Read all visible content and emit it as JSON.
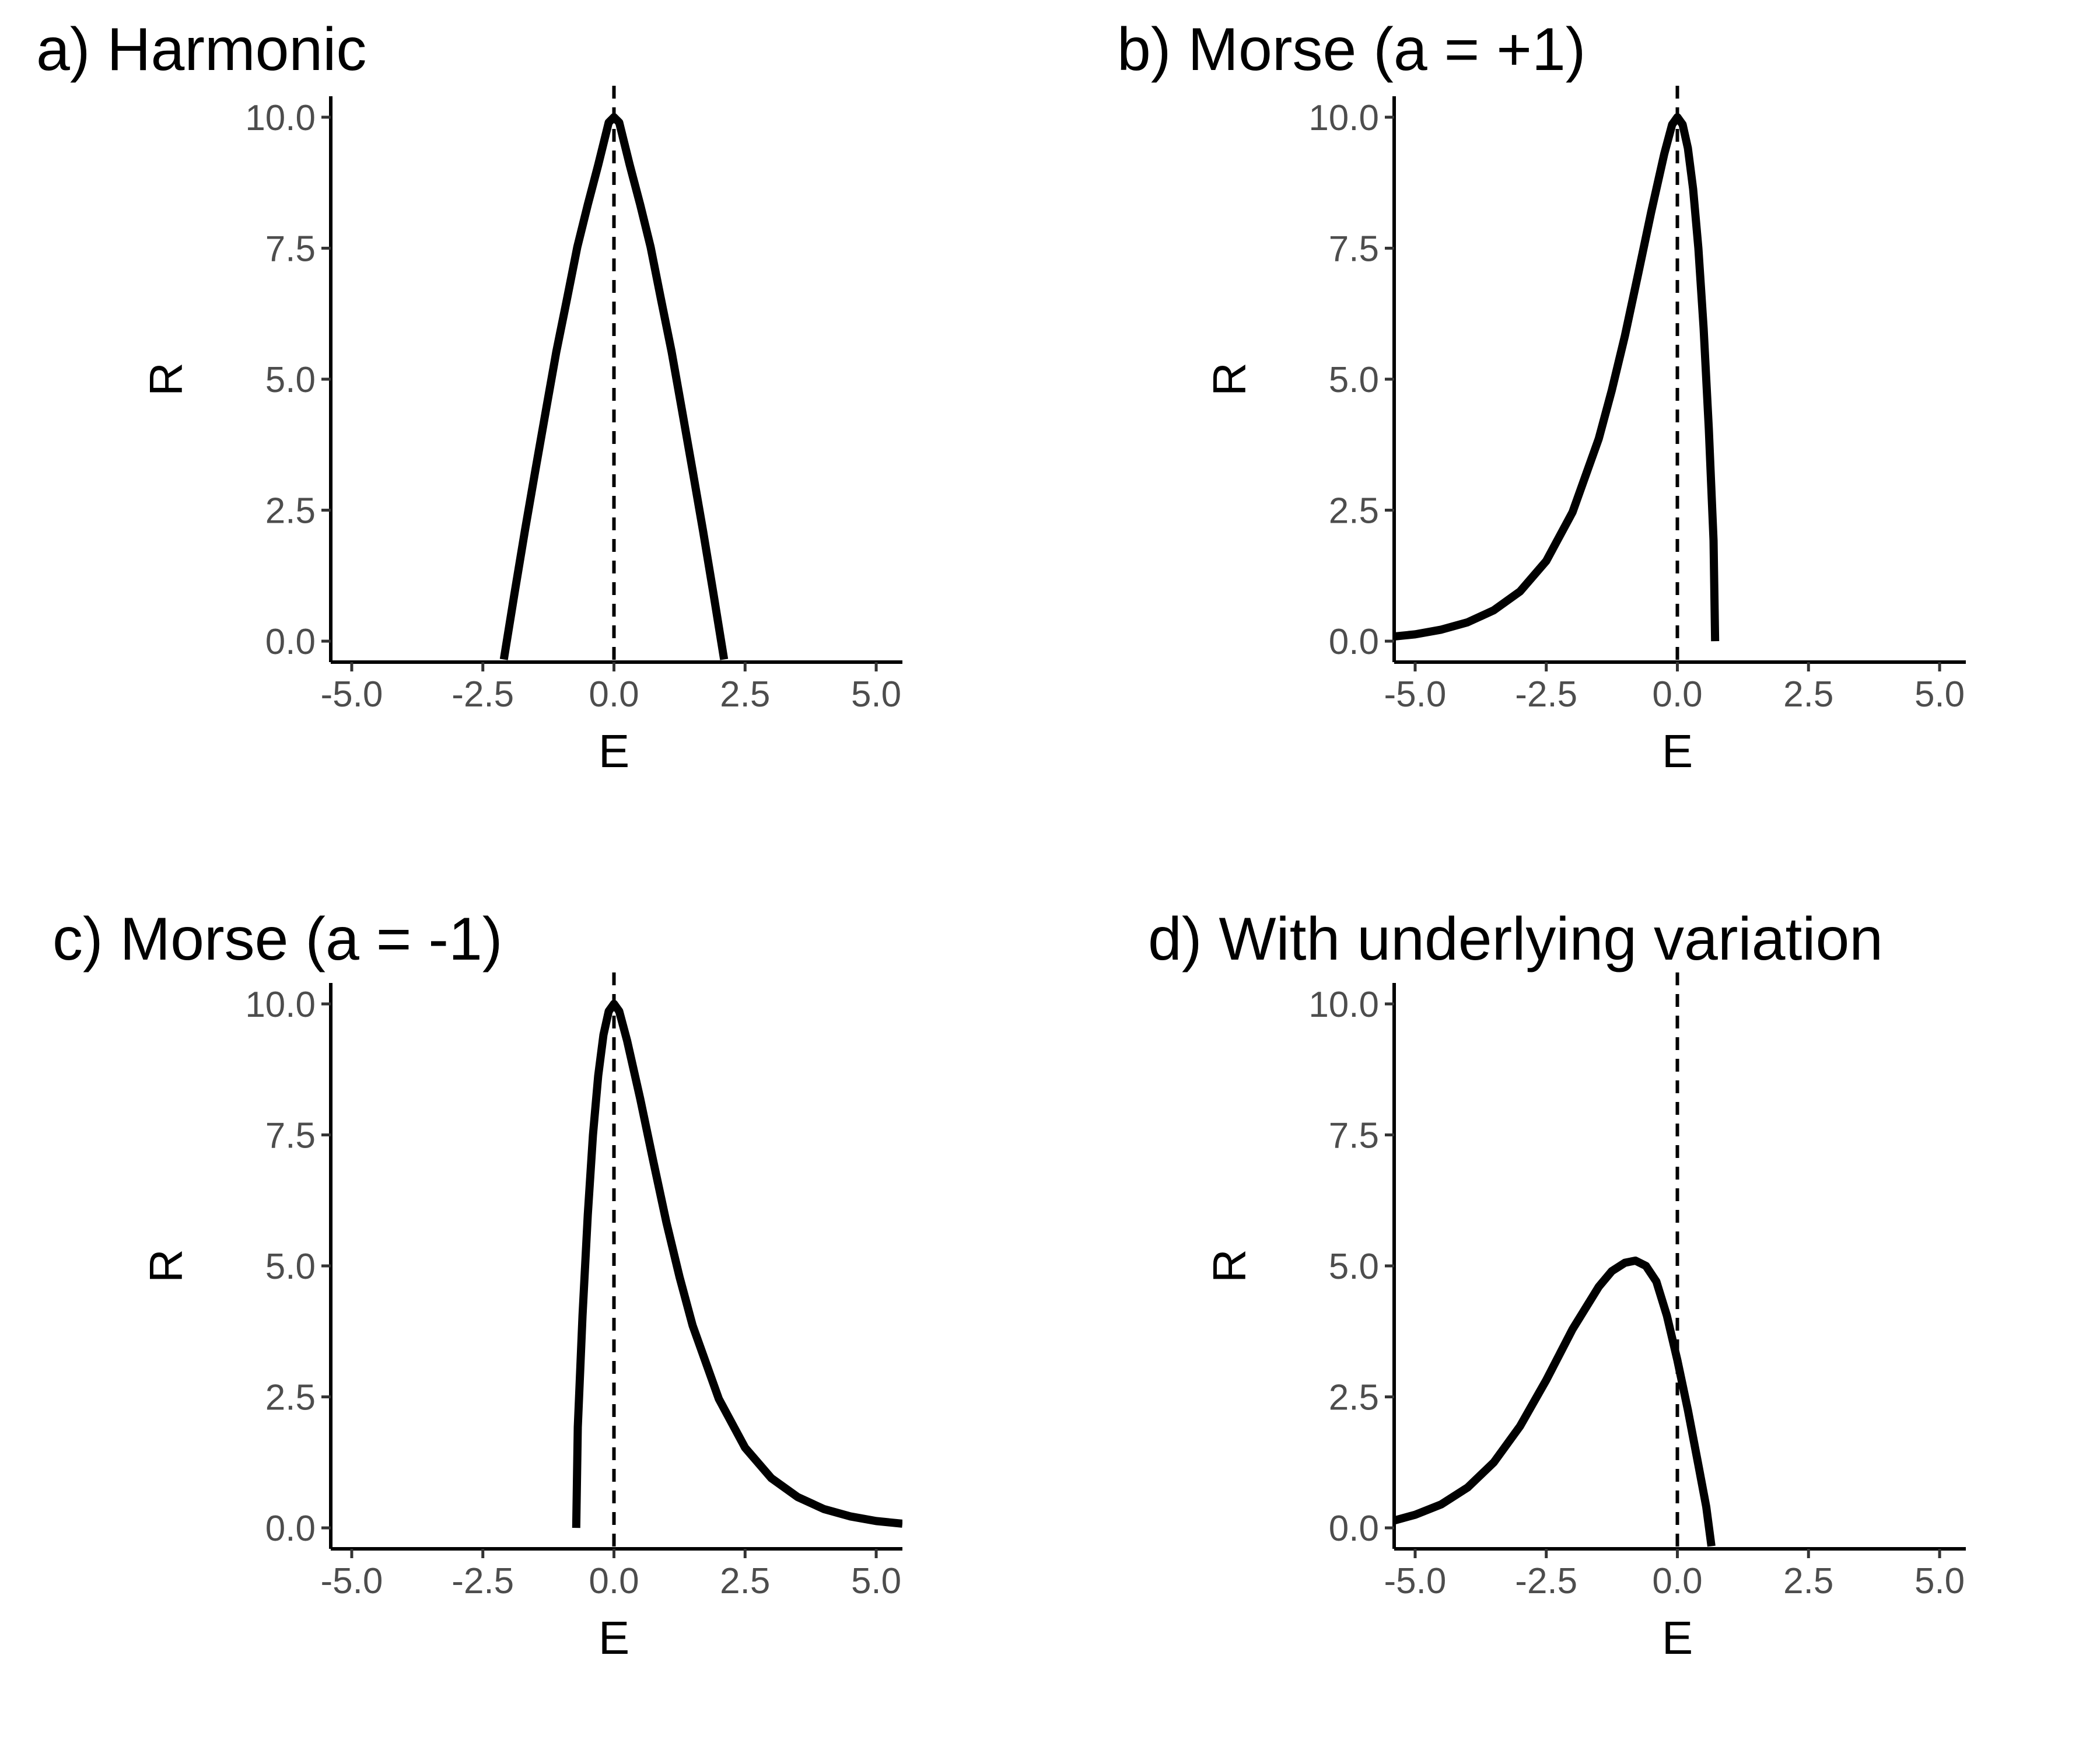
{
  "chart_data": [
    {
      "type": "line",
      "title": "a) Harmonic",
      "xlabel": "E",
      "ylabel": "R",
      "xlim": [
        -5.4,
        5.5
      ],
      "ylim": [
        -0.4,
        10.4
      ],
      "xticks": [
        "-5.0",
        "-2.5",
        "0.0",
        "2.5",
        "5.0"
      ],
      "yticks": [
        "0.0",
        "2.5",
        "5.0",
        "7.5",
        "10.0"
      ],
      "reference_line": {
        "x": 0,
        "style": "dashed"
      },
      "grid": false,
      "series": [
        {
          "x": [
            -2.1,
            -1.9,
            -1.7,
            -1.5,
            -1.3,
            -1.1,
            -0.9,
            -0.7,
            -0.5,
            -0.3,
            -0.1,
            0.0,
            0.1,
            0.3,
            0.5,
            0.7,
            0.9,
            1.1,
            1.3,
            1.5,
            1.7,
            1.9,
            2.1
          ],
          "y": [
            -0.35,
            0.89,
            2.1,
            3.25,
            4.39,
            5.52,
            6.51,
            7.52,
            8.33,
            9.09,
            9.9,
            10.0,
            9.9,
            9.09,
            8.33,
            7.52,
            6.51,
            5.52,
            4.39,
            3.25,
            2.1,
            0.89,
            -0.35
          ]
        }
      ]
    },
    {
      "type": "line",
      "title": "b) Morse (a = +1)",
      "xlabel": "E",
      "ylabel": "R",
      "xlim": [
        -5.4,
        5.5
      ],
      "ylim": [
        -0.4,
        10.4
      ],
      "xticks": [
        "-5.0",
        "-2.5",
        "0.0",
        "2.5",
        "5.0"
      ],
      "yticks": [
        "0.0",
        "2.5",
        "5.0",
        "7.5",
        "10.0"
      ],
      "reference_line": {
        "x": 0,
        "style": "dashed"
      },
      "grid": false,
      "series": [
        {
          "x": [
            -5.4,
            -5.0,
            -4.5,
            -4.0,
            -3.5,
            -3.0,
            -2.5,
            -2.0,
            -1.5,
            -1.25,
            -1.0,
            -0.75,
            -0.5,
            -0.25,
            -0.1,
            0.0,
            0.1,
            0.2,
            0.3,
            0.4,
            0.5,
            0.6,
            0.69,
            0.72
          ],
          "y": [
            0.09,
            0.13,
            0.22,
            0.36,
            0.59,
            0.95,
            1.53,
            2.46,
            3.86,
            4.79,
            5.83,
            7.0,
            8.19,
            9.3,
            9.86,
            10.0,
            9.86,
            9.41,
            8.63,
            7.5,
            5.97,
            4.05,
            1.92,
            0.0
          ]
        }
      ]
    },
    {
      "type": "line",
      "title": "c) Morse (a = -1)",
      "xlabel": "E",
      "ylabel": "R",
      "xlim": [
        -5.4,
        5.5
      ],
      "ylim": [
        -0.4,
        10.4
      ],
      "xticks": [
        "-5.0",
        "-2.5",
        "0.0",
        "2.5",
        "5.0"
      ],
      "yticks": [
        "0.0",
        "2.5",
        "5.0",
        "7.5",
        "10.0"
      ],
      "reference_line": {
        "x": 0,
        "style": "dashed"
      },
      "grid": false,
      "series": [
        {
          "x": [
            -0.72,
            -0.69,
            -0.6,
            -0.5,
            -0.4,
            -0.3,
            -0.2,
            -0.1,
            0.0,
            0.1,
            0.25,
            0.5,
            0.75,
            1.0,
            1.25,
            1.5,
            2.0,
            2.5,
            3.0,
            3.5,
            4.0,
            4.5,
            5.0,
            5.5
          ],
          "y": [
            0.0,
            1.92,
            4.05,
            5.97,
            7.5,
            8.63,
            9.41,
            9.86,
            10.0,
            9.86,
            9.3,
            8.19,
            7.0,
            5.83,
            4.79,
            3.86,
            2.46,
            1.53,
            0.95,
            0.59,
            0.36,
            0.22,
            0.13,
            0.08
          ]
        }
      ]
    },
    {
      "type": "line",
      "title": "d) With underlying variation",
      "xlabel": "E",
      "ylabel": "R",
      "xlim": [
        -5.4,
        5.5
      ],
      "ylim": [
        -0.4,
        10.4
      ],
      "xticks": [
        "-5.0",
        "-2.5",
        "0.0",
        "2.5",
        "5.0"
      ],
      "yticks": [
        "0.0",
        "2.5",
        "5.0",
        "7.5",
        "10.0"
      ],
      "reference_line": {
        "x": 0,
        "style": "dashed"
      },
      "grid": false,
      "series": [
        {
          "x": [
            -5.4,
            -5.0,
            -4.5,
            -4.0,
            -3.5,
            -3.0,
            -2.5,
            -2.0,
            -1.5,
            -1.25,
            -1.0,
            -0.8,
            -0.6,
            -0.4,
            -0.2,
            0.0,
            0.2,
            0.4,
            0.55,
            0.65
          ],
          "y": [
            0.14,
            0.25,
            0.45,
            0.77,
            1.25,
            1.94,
            2.82,
            3.79,
            4.6,
            4.9,
            5.06,
            5.1,
            5.0,
            4.7,
            4.05,
            3.2,
            2.25,
            1.2,
            0.4,
            -0.35
          ]
        }
      ]
    }
  ]
}
